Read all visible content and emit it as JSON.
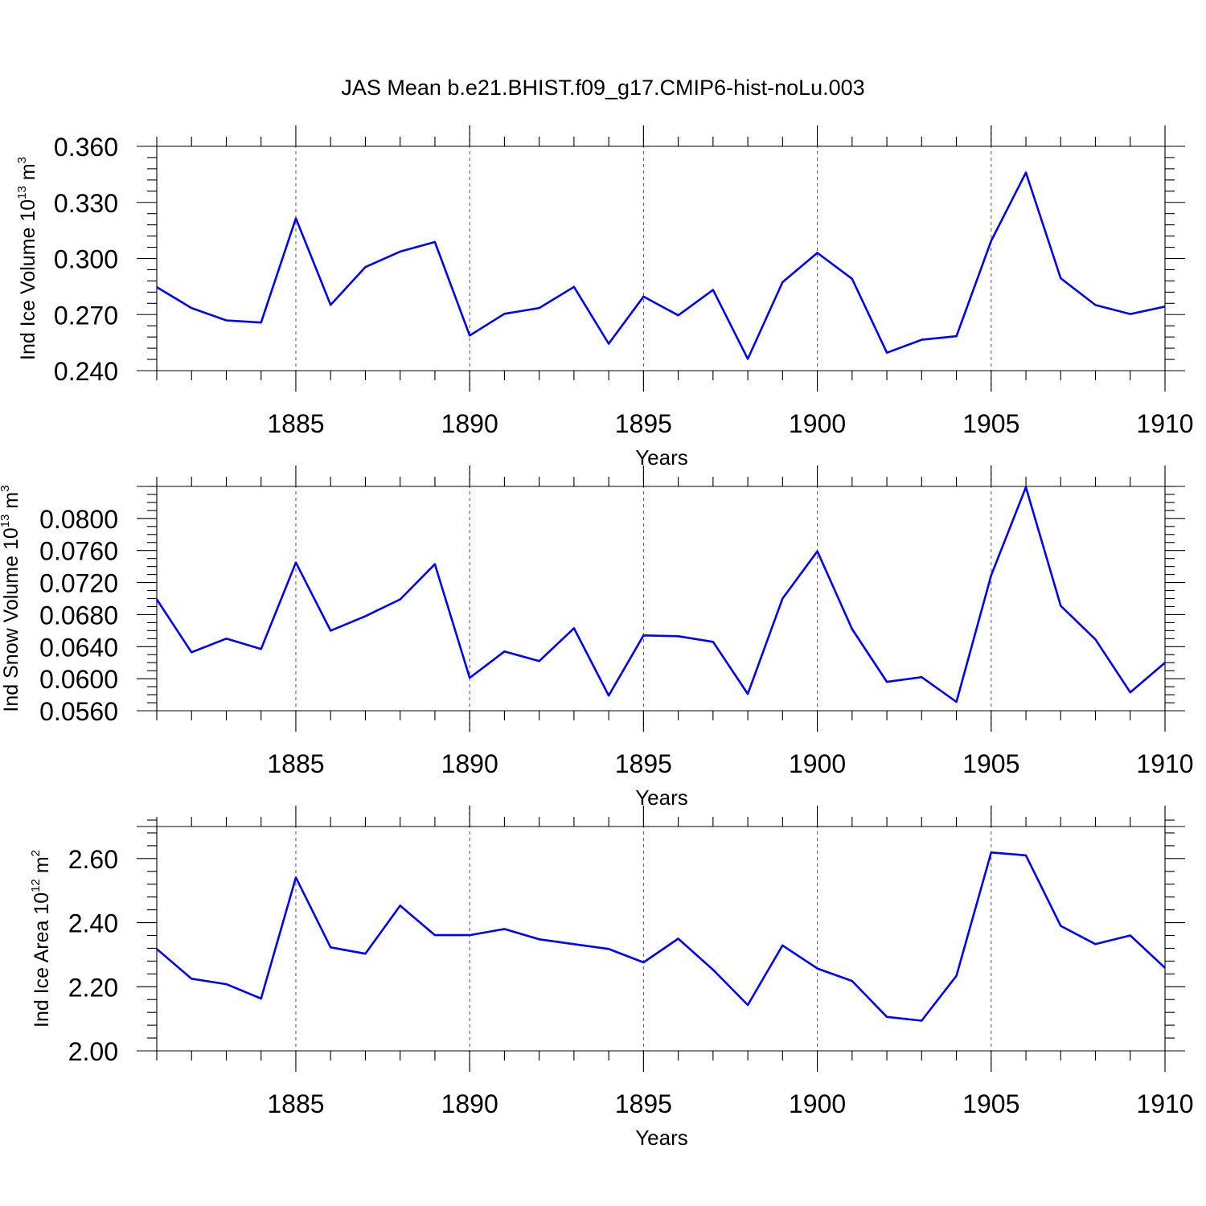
{
  "title": "JAS Mean b.e21.BHIST.f09_g17.CMIP6-hist-noLu.003",
  "line_color": "#0000ff",
  "chart_data": [
    {
      "type": "line",
      "title": "JAS Mean b.e21.BHIST.f09_g17.CMIP6-hist-noLu.003",
      "ylabel": {
        "main": "Ind Ice Volume 10",
        "exponent": "13",
        "unit": " m",
        "unit_exponent": "3"
      },
      "xlabel": "Years",
      "xlim": [
        1881,
        1910
      ],
      "ylim": [
        0.24,
        0.36
      ],
      "yticks": [
        0.24,
        0.27,
        0.3,
        0.33,
        0.36
      ],
      "ytick_labels": [
        "0.240",
        "0.270",
        "0.300",
        "0.330",
        "0.360"
      ],
      "yminor_step": 0.006,
      "xticks": [
        1885,
        1890,
        1895,
        1900,
        1905,
        1910
      ],
      "xtick_labels": [
        "1885",
        "1890",
        "1895",
        "1900",
        "1905",
        "1910"
      ],
      "x": [
        1881,
        1882,
        1883,
        1884,
        1885,
        1886,
        1887,
        1888,
        1889,
        1890,
        1891,
        1892,
        1893,
        1894,
        1895,
        1896,
        1897,
        1898,
        1899,
        1900,
        1901,
        1902,
        1903,
        1904,
        1905,
        1906,
        1907,
        1908,
        1909,
        1910
      ],
      "series": [
        {
          "name": "Ind Ice Volume",
          "values": [
            0.2847,
            0.2735,
            0.2669,
            0.2657,
            0.3215,
            0.2752,
            0.2954,
            0.3037,
            0.3088,
            0.2588,
            0.2704,
            0.2735,
            0.2848,
            0.2544,
            0.2796,
            0.2696,
            0.2832,
            0.2463,
            0.2873,
            0.303,
            0.2891,
            0.2496,
            0.2565,
            0.2584,
            0.3094,
            0.346,
            0.2894,
            0.2751,
            0.2703,
            0.2743
          ]
        }
      ]
    },
    {
      "type": "line",
      "ylabel": {
        "main": "Ind Snow Volume 10",
        "exponent": "13",
        "unit": " m",
        "unit_exponent": "3"
      },
      "xlabel": "Years",
      "xlim": [
        1881,
        1910
      ],
      "ylim": [
        0.056,
        0.084
      ],
      "yticks": [
        0.056,
        0.06,
        0.064,
        0.068,
        0.072,
        0.076,
        0.08
      ],
      "ytick_labels": [
        "0.0560",
        "0.0600",
        "0.0640",
        "0.0680",
        "0.0720",
        "0.0760",
        "0.0800"
      ],
      "yminor_step": 0.001,
      "xticks": [
        1885,
        1890,
        1895,
        1900,
        1905,
        1910
      ],
      "xtick_labels": [
        "1885",
        "1890",
        "1895",
        "1900",
        "1905",
        "1910"
      ],
      "x": [
        1881,
        1882,
        1883,
        1884,
        1885,
        1886,
        1887,
        1888,
        1889,
        1890,
        1891,
        1892,
        1893,
        1894,
        1895,
        1896,
        1897,
        1898,
        1899,
        1900,
        1901,
        1902,
        1903,
        1904,
        1905,
        1906,
        1907,
        1908,
        1909,
        1910
      ],
      "series": [
        {
          "name": "Ind Snow Volume",
          "values": [
            0.0699,
            0.0633,
            0.065,
            0.0637,
            0.0745,
            0.066,
            0.0678,
            0.0699,
            0.0743,
            0.0601,
            0.0634,
            0.0622,
            0.0663,
            0.0579,
            0.0654,
            0.0653,
            0.0646,
            0.0581,
            0.07,
            0.0759,
            0.0662,
            0.0596,
            0.0602,
            0.0571,
            0.0729,
            0.0839,
            0.0691,
            0.0649,
            0.0583,
            0.062
          ]
        }
      ]
    },
    {
      "type": "line",
      "ylabel": {
        "main": "Ind Ice Area 10",
        "exponent": "12",
        "unit": " m",
        "unit_exponent": "2"
      },
      "xlabel": "Years",
      "xlim": [
        1881,
        1910
      ],
      "ylim": [
        2.0,
        2.7
      ],
      "yticks": [
        2.0,
        2.2,
        2.4,
        2.6
      ],
      "ytick_labels": [
        "2.00",
        "2.20",
        "2.40",
        "2.60"
      ],
      "yminor_step": 0.04,
      "xticks": [
        1885,
        1890,
        1895,
        1900,
        1905,
        1910
      ],
      "xtick_labels": [
        "1885",
        "1890",
        "1895",
        "1900",
        "1905",
        "1910"
      ],
      "x": [
        1881,
        1882,
        1883,
        1884,
        1885,
        1886,
        1887,
        1888,
        1889,
        1890,
        1891,
        1892,
        1893,
        1894,
        1895,
        1896,
        1897,
        1898,
        1899,
        1900,
        1901,
        1902,
        1903,
        1904,
        1905,
        1906,
        1907,
        1908,
        1909,
        1910
      ],
      "series": [
        {
          "name": "Ind Ice Area",
          "values": [
            2.318,
            2.225,
            2.208,
            2.163,
            2.541,
            2.323,
            2.303,
            2.453,
            2.361,
            2.361,
            2.38,
            2.348,
            2.333,
            2.318,
            2.276,
            2.35,
            2.253,
            2.143,
            2.329,
            2.257,
            2.218,
            2.106,
            2.094,
            2.234,
            2.619,
            2.61,
            2.39,
            2.333,
            2.36,
            2.259
          ]
        }
      ]
    }
  ]
}
